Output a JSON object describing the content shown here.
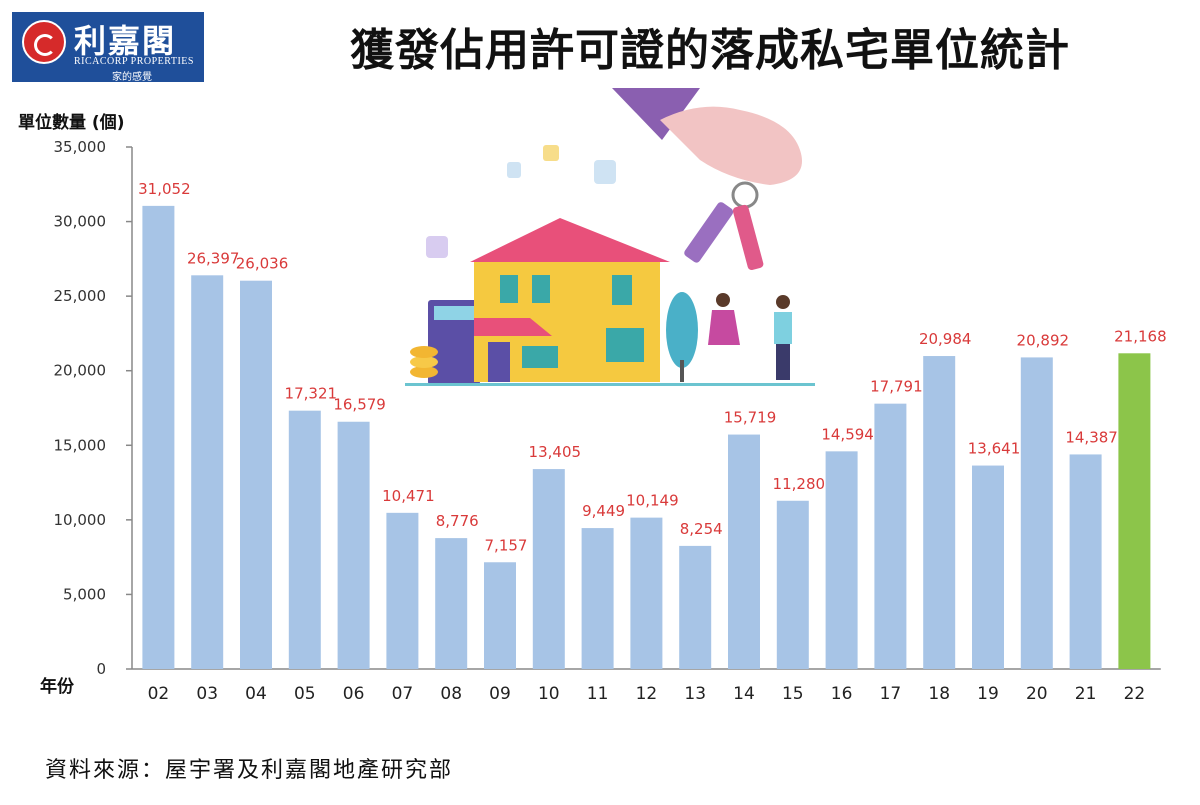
{
  "logo": {
    "name": "利嘉閣",
    "english": "RICACORP PROPERTIES",
    "tagline": "家的感覺"
  },
  "title": "獲發佔用許可證的落成私宅單位統計",
  "source": "資料來源：屋宇署及利嘉閣地產研究部",
  "colors": {
    "bar": "#a7c4e6",
    "highlight": "#8cc54a",
    "label": "#d93a3a"
  },
  "chart_data": {
    "type": "bar",
    "title": "獲發佔用許可證的落成私宅單位統計",
    "xlabel": "年份",
    "ylabel": "單位數量 (個)",
    "ylim": [
      0,
      35000
    ],
    "yticks": [
      {
        "value": 0,
        "label": "0"
      },
      {
        "value": 5000,
        "label": "5,000"
      },
      {
        "value": 10000,
        "label": "10,000"
      },
      {
        "value": 15000,
        "label": "15,000"
      },
      {
        "value": 20000,
        "label": "20,000"
      },
      {
        "value": 25000,
        "label": "25,000"
      },
      {
        "value": 30000,
        "label": "30,000"
      },
      {
        "value": 35000,
        "label": "35,000"
      }
    ],
    "categories": [
      "02",
      "03",
      "04",
      "05",
      "06",
      "07",
      "08",
      "09",
      "10",
      "11",
      "12",
      "13",
      "14",
      "15",
      "16",
      "17",
      "18",
      "19",
      "20",
      "21",
      "22"
    ],
    "values": [
      31052,
      26397,
      26036,
      17321,
      16579,
      10471,
      8776,
      7157,
      13405,
      9449,
      10149,
      8254,
      15719,
      11280,
      14594,
      17791,
      20984,
      13641,
      20892,
      14387,
      21168
    ],
    "data_labels": [
      "31,052",
      "26,397",
      "26,036",
      "17,321",
      "16,579",
      "10,471",
      "8,776",
      "7,157",
      "13,405",
      "9,449",
      "10,149",
      "8,254",
      "15,719",
      "11,280",
      "14,594",
      "17,791",
      "20,984",
      "13,641",
      "20,892",
      "14,387",
      "21,168"
    ],
    "highlight_index": 20,
    "grid": false
  }
}
